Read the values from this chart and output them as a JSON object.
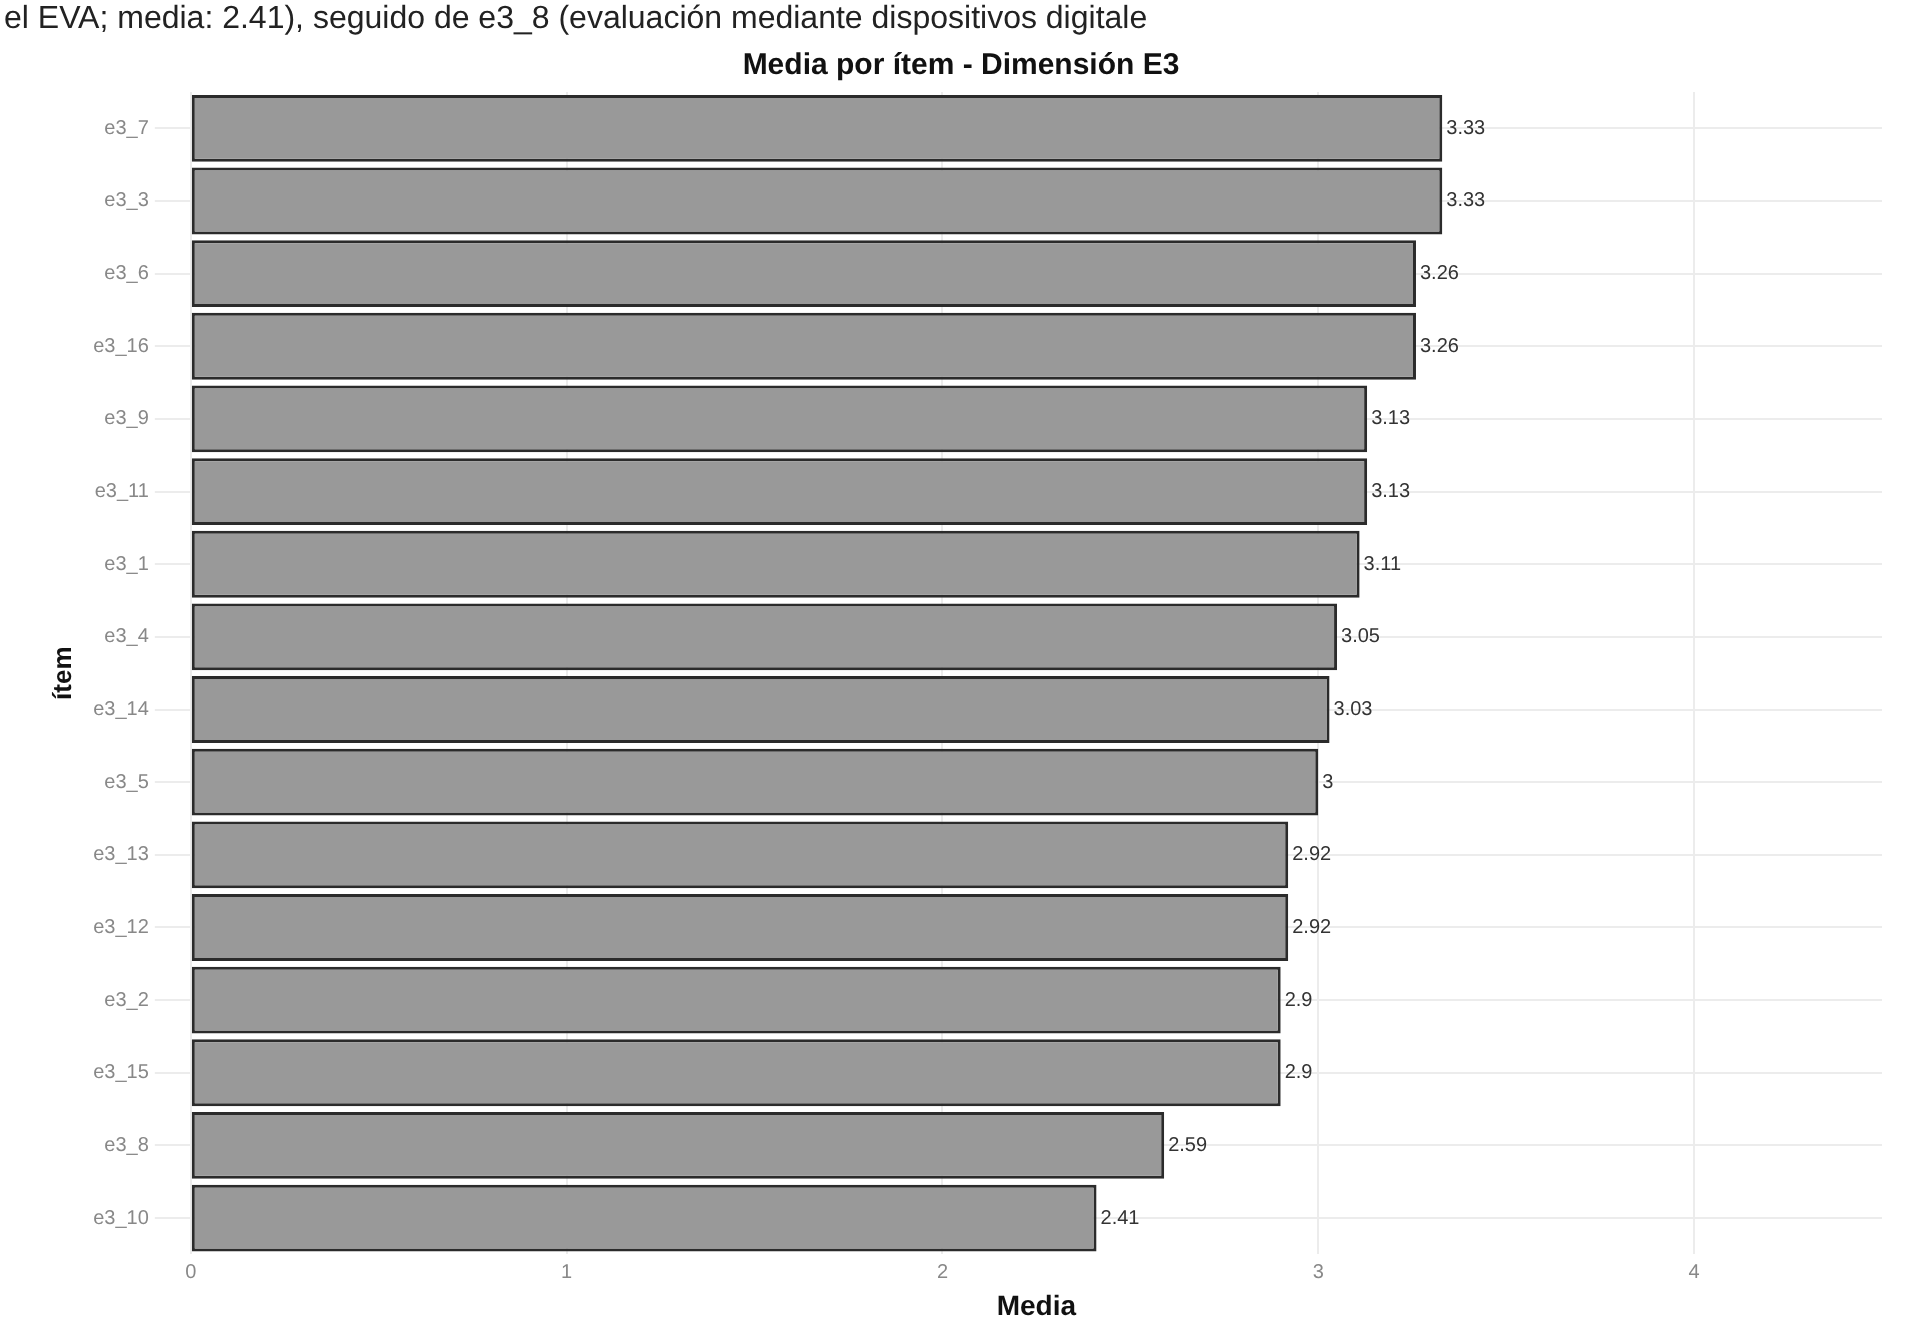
{
  "chart_data": {
    "type": "bar",
    "orientation": "horizontal",
    "title": "Media por ítem - Dimensión E3",
    "xlabel": "Media",
    "ylabel": "ítem",
    "annotations": [
      "el EVA; media: 2.41), seguido de e3_8 (evaluación mediante dispositivos digitale"
    ],
    "categories": [
      "e3_7",
      "e3_3",
      "e3_6",
      "e3_16",
      "e3_9",
      "e3_11",
      "e3_1",
      "e3_4",
      "e3_14",
      "e3_5",
      "e3_13",
      "e3_12",
      "e3_2",
      "e3_15",
      "e3_8",
      "e3_10"
    ],
    "values": [
      3.33,
      3.33,
      3.26,
      3.26,
      3.13,
      3.13,
      3.11,
      3.05,
      3.03,
      3,
      2.92,
      2.92,
      2.9,
      2.9,
      2.59,
      2.41
    ],
    "color": "#999999",
    "data_labels": true,
    "xlim": [
      0,
      4.5
    ],
    "xticks": [
      0,
      1,
      2,
      3,
      4
    ],
    "grid": true
  }
}
